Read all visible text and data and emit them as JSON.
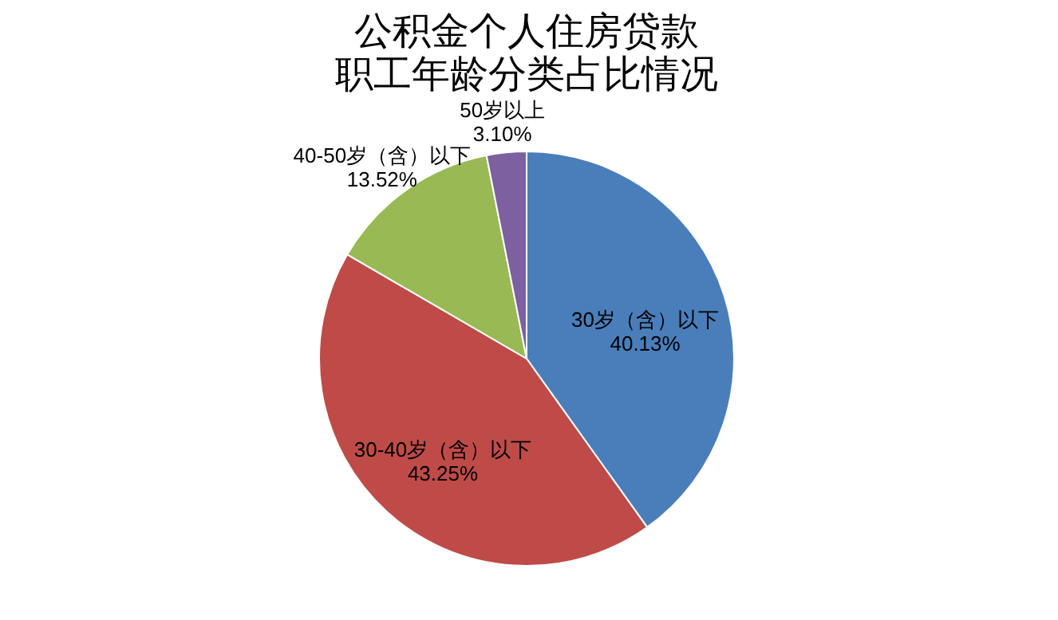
{
  "chart_data": {
    "type": "pie",
    "title": "公积金个人住房贷款",
    "subtitle": "职工年龄分类占比情况",
    "categories": [
      "30岁（含）以下",
      "30-40岁（含）以下",
      "40-50岁（含）以下",
      "50岁以上"
    ],
    "values": [
      40.13,
      43.25,
      13.52,
      3.1
    ],
    "value_labels": [
      "40.13%",
      "43.25%",
      "13.52%",
      "3.10%"
    ],
    "colors": [
      "#4a7ebb",
      "#be4b48",
      "#98b954",
      "#7d60a0"
    ],
    "legend": false
  }
}
